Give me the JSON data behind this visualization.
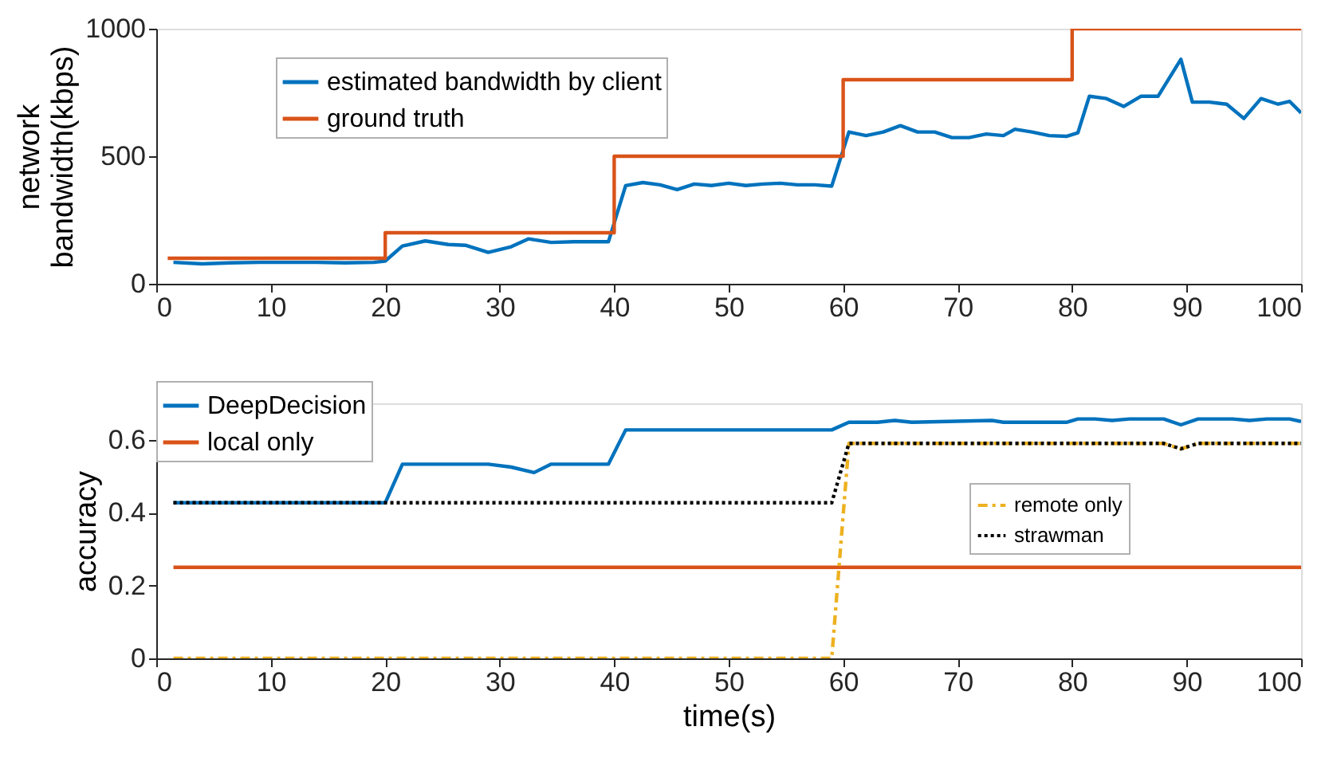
{
  "chart_data": [
    {
      "type": "line",
      "ylabel": "network\nbandwidth(kbps)",
      "xlim": [
        0,
        100
      ],
      "ylim": [
        0,
        1000
      ],
      "xticks": [
        0,
        10,
        20,
        30,
        40,
        50,
        60,
        70,
        80,
        90,
        100
      ],
      "yticks": [
        0,
        500,
        1000
      ],
      "grid": false,
      "legend": "top left",
      "marker": "none",
      "series": [
        {
          "name": "estimated bandwidth by client",
          "color": "#0072bd",
          "line_style": "solid",
          "x": [
            1.5,
            4,
            6.5,
            9,
            11.5,
            14,
            16.5,
            19,
            20,
            21.5,
            23.5,
            25.5,
            27,
            29,
            31,
            32.5,
            34.5,
            36.5,
            39.5,
            41,
            42.5,
            44,
            45.5,
            47,
            48.5,
            50,
            51.5,
            53,
            54.5,
            56,
            57.5,
            59,
            60.5,
            62,
            63.5,
            65,
            66.5,
            68,
            69.5,
            71,
            72.5,
            74,
            75,
            76.5,
            78,
            79.5,
            80.5,
            81.5,
            83,
            84.5,
            86,
            87.5,
            89.5,
            90.5,
            92,
            93.5,
            95,
            96.5,
            98,
            99,
            100
          ],
          "values": [
            84,
            78,
            82,
            84,
            84,
            84,
            82,
            84,
            89,
            148,
            168,
            154,
            151,
            123,
            145,
            176,
            162,
            165,
            165,
            385,
            397,
            388,
            369,
            391,
            385,
            394,
            385,
            391,
            394,
            388,
            388,
            383,
            595,
            581,
            595,
            620,
            595,
            595,
            573,
            573,
            587,
            581,
            606,
            595,
            581,
            578,
            592,
            735,
            726,
            695,
            735,
            735,
            880,
            712,
            712,
            704,
            648,
            726,
            704,
            715,
            670
          ]
        },
        {
          "name": "ground truth",
          "color": "#d95319",
          "type": "step",
          "line_style": "solid",
          "x": [
            1,
            20,
            40,
            60,
            80,
            100
          ],
          "values": [
            100,
            200,
            500,
            800,
            1000,
            1000
          ]
        }
      ]
    },
    {
      "type": "line",
      "xlabel": "time(s)",
      "ylabel": "accuracy",
      "xlim": [
        0,
        100
      ],
      "ylim": [
        0,
        0.7
      ],
      "xticks": [
        0,
        10,
        20,
        30,
        40,
        50,
        60,
        70,
        80,
        90,
        100
      ],
      "yticks": [
        0,
        0.2,
        0.4,
        0.6
      ],
      "grid": false,
      "legend": "top left",
      "marker": "none",
      "series": [
        {
          "name": "DeepDecision",
          "color": "#0072bd",
          "line_style": "solid",
          "x": [
            1.5,
            20,
            21.5,
            29,
            31,
            33,
            34.5,
            39.5,
            41,
            59,
            60.5,
            63,
            64.5,
            66,
            73,
            74,
            79.5,
            80.5,
            82,
            83.5,
            85,
            88,
            89.5,
            91,
            94,
            95.5,
            97,
            99,
            100
          ],
          "values": [
            0.427,
            0.427,
            0.533,
            0.533,
            0.525,
            0.51,
            0.533,
            0.533,
            0.627,
            0.627,
            0.648,
            0.648,
            0.653,
            0.648,
            0.653,
            0.648,
            0.648,
            0.657,
            0.657,
            0.653,
            0.657,
            0.657,
            0.641,
            0.657,
            0.657,
            0.653,
            0.657,
            0.657,
            0.65
          ]
        },
        {
          "name": "local only",
          "color": "#d95319",
          "line_style": "solid",
          "x": [
            1.5,
            100
          ],
          "values": [
            0.25,
            0.25
          ]
        },
        {
          "name": "remote only",
          "color": "#edb120",
          "line_style": "dashed",
          "x": [
            1.5,
            59,
            60.5,
            88,
            89.5,
            91,
            100
          ],
          "values": [
            0,
            0,
            0.59,
            0.59,
            0.575,
            0.59,
            0.59
          ]
        },
        {
          "name": "strawman",
          "color": "#000000",
          "line_style": "dotted",
          "x": [
            1.5,
            59,
            60.5,
            88,
            89.5,
            91,
            100
          ],
          "values": [
            0.427,
            0.427,
            0.59,
            0.59,
            0.575,
            0.59,
            0.59
          ]
        }
      ]
    }
  ]
}
